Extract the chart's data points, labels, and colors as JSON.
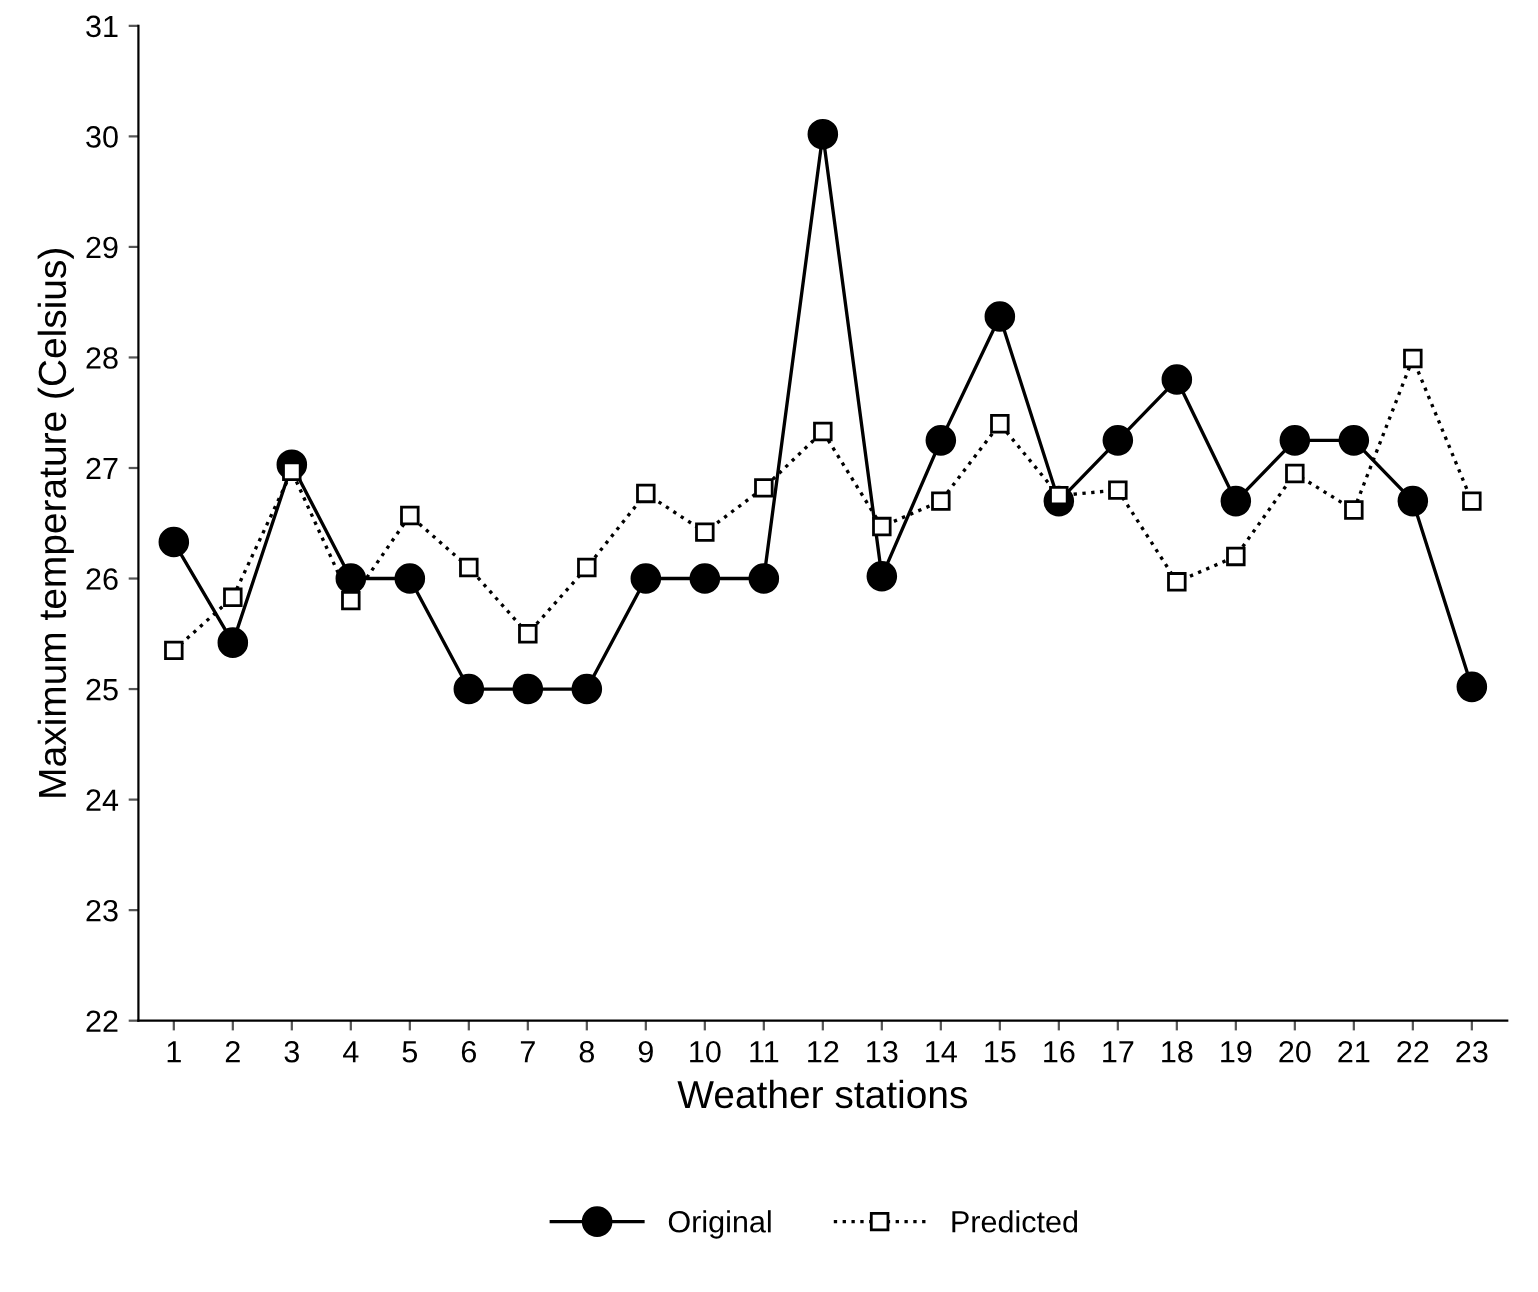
{
  "chart_data": {
    "type": "line",
    "xlabel": "Weather stations",
    "ylabel": "Maximum temperature (Celsius)",
    "categories": [
      "1",
      "2",
      "3",
      "4",
      "5",
      "6",
      "7",
      "8",
      "9",
      "10",
      "11",
      "12",
      "13",
      "14",
      "15",
      "16",
      "17",
      "18",
      "19",
      "20",
      "21",
      "22",
      "23"
    ],
    "ylim": [
      22,
      31
    ],
    "yticks": [
      22,
      23,
      24,
      25,
      26,
      27,
      28,
      29,
      30,
      31
    ],
    "grid": false,
    "legend": "bottom",
    "series": [
      {
        "name": "Original",
        "color": "#000000",
        "marker": "circle",
        "line_style": "solid",
        "values": [
          26.33,
          25.42,
          27.03,
          26,
          26,
          25,
          25,
          25,
          26,
          26,
          26,
          30.02,
          26.02,
          27.25,
          28.37,
          26.7,
          27.25,
          27.8,
          26.7,
          27.25,
          27.25,
          26.7,
          25.02
        ]
      },
      {
        "name": "Predicted",
        "color": "#000000",
        "marker": "square",
        "line_style": "dotted",
        "values": [
          25.35,
          25.83,
          26.97,
          25.8,
          26.57,
          26.1,
          25.5,
          26.1,
          26.77,
          26.42,
          26.82,
          27.33,
          26.47,
          26.7,
          27.4,
          26.75,
          26.8,
          25.97,
          26.2,
          26.95,
          26.62,
          27.99,
          26.7
        ]
      }
    ]
  }
}
